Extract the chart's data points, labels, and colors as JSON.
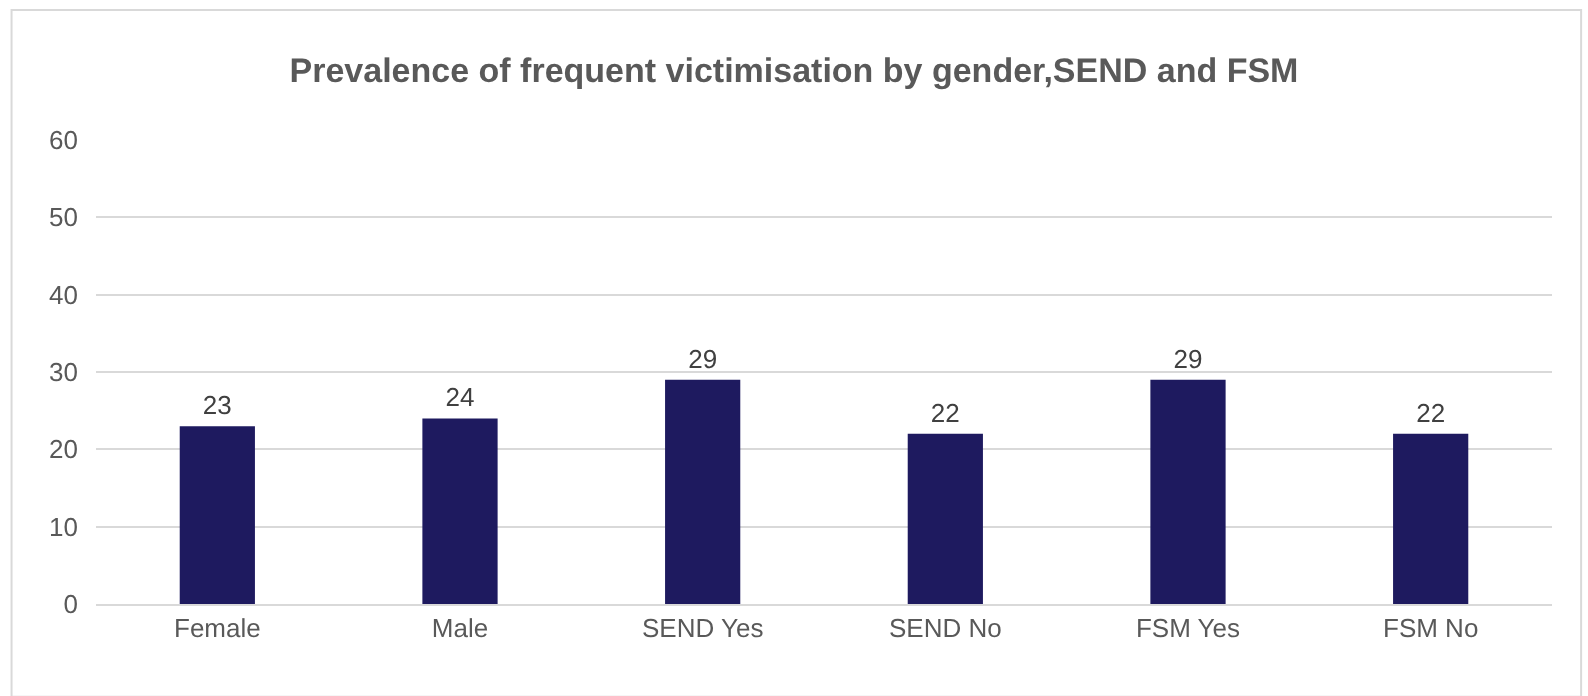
{
  "chart_data": {
    "type": "bar",
    "title": "Prevalence of frequent victimisation by gender,SEND and FSM",
    "categories": [
      "Female",
      "Male",
      "SEND Yes",
      "SEND No",
      "FSM Yes",
      "FSM No"
    ],
    "values": [
      23,
      24,
      29,
      22,
      29,
      22
    ],
    "color": "#1e1a5f",
    "ylim": [
      0,
      60
    ],
    "yticks": [
      0,
      10,
      20,
      30,
      40,
      50,
      60
    ],
    "grid": "y",
    "data_labels": true,
    "legend": false
  }
}
